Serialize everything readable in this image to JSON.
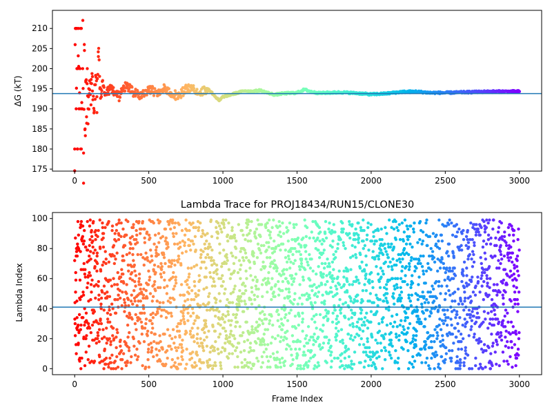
{
  "chart_data": [
    {
      "type": "scatter",
      "title": "",
      "xlabel": "",
      "ylabel": "ΔG (kT)",
      "xlim": [
        -150,
        3150
      ],
      "ylim": [
        174.5,
        214.5
      ],
      "xticks": [
        0,
        500,
        1000,
        1500,
        2000,
        2500,
        3000
      ],
      "yticks": [
        175,
        180,
        185,
        190,
        195,
        200,
        205,
        210
      ],
      "hline": 193.8,
      "hline_color": "#1f77b4",
      "grid": false,
      "colormap": "rainbow",
      "series": [
        {
          "x": [
            0,
            5,
            10,
            15,
            20,
            25,
            30,
            35,
            40,
            45,
            50,
            55,
            60,
            65,
            70,
            75,
            80,
            85,
            90,
            95,
            100,
            110,
            120,
            130,
            140,
            150,
            160,
            170,
            180,
            200,
            250,
            300,
            350,
            400,
            450,
            500,
            550,
            600,
            650,
            700,
            750,
            800,
            850,
            900,
            950,
            975,
            1000,
            1050,
            1100,
            1150,
            1200,
            1250,
            1300,
            1350,
            1400,
            1450,
            1500,
            1550,
            1600,
            1650,
            1700,
            1800,
            1900,
            2000,
            2100,
            2200,
            2300,
            2400,
            2500,
            2600,
            2700,
            2800,
            2900,
            3000
          ],
          "y": [
            180,
            210,
            190,
            200,
            180,
            210,
            190,
            200,
            180,
            210,
            190,
            212,
            179,
            206,
            185,
            197,
            188,
            200,
            190,
            195,
            197,
            191,
            198,
            189,
            196,
            193,
            203,
            195,
            193,
            194,
            195,
            193,
            196,
            194,
            193,
            195,
            194,
            195,
            194,
            193,
            195,
            195,
            194,
            195,
            193,
            192,
            193,
            193.5,
            194,
            194.5,
            194.3,
            194.6,
            194,
            193.5,
            193.8,
            193.9,
            194,
            194.8,
            194.2,
            193.9,
            194,
            194.1,
            193.9,
            193.6,
            193.8,
            194.2,
            194.3,
            194,
            194,
            194.1,
            194.2,
            194.3,
            194.3,
            194.3
          ]
        }
      ]
    },
    {
      "type": "scatter",
      "title": "Lambda Trace for PROJ18434/RUN15/CLONE30",
      "xlabel": "Frame Index",
      "ylabel": "Lambda Index",
      "xlim": [
        -150,
        3150
      ],
      "ylim": [
        -4,
        104
      ],
      "xticks": [
        0,
        500,
        1000,
        1500,
        2000,
        2500,
        3000
      ],
      "yticks": [
        0,
        20,
        40,
        60,
        80,
        100
      ],
      "hline": 41,
      "hline_color": "#1f77b4",
      "grid": false,
      "colormap": "rainbow",
      "points": {
        "count": 3000,
        "x_range": [
          0,
          3000
        ],
        "y_range": [
          0,
          99
        ],
        "distribution": "uniform random over lambda indices 0–99, dense band of points per frame"
      }
    }
  ]
}
